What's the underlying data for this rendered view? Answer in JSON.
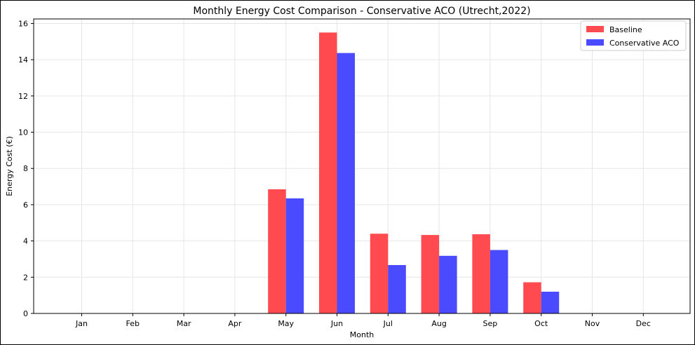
{
  "chart_data": {
    "type": "bar",
    "title": "Monthly Energy Cost Comparison - Conservative ACO (Utrecht,2022)",
    "xlabel": "Month",
    "ylabel": "Energy Cost (€)",
    "categories": [
      "Jan",
      "Feb",
      "Mar",
      "Apr",
      "May",
      "Jun",
      "Jul",
      "Aug",
      "Sep",
      "Oct",
      "Nov",
      "Dec"
    ],
    "series": [
      {
        "name": "Baseline",
        "color": "#ff4a4f",
        "values": [
          0,
          0,
          0,
          0,
          6.85,
          15.5,
          4.4,
          4.33,
          4.37,
          1.72,
          0,
          0
        ]
      },
      {
        "name": "Conservative ACO",
        "color": "#4a4aff",
        "values": [
          0,
          0,
          0,
          0,
          6.35,
          14.37,
          2.67,
          3.18,
          3.5,
          1.2,
          0,
          0
        ]
      }
    ],
    "ylim": [
      0,
      16.25
    ],
    "yticks": [
      0,
      2,
      4,
      6,
      8,
      10,
      12,
      14,
      16
    ],
    "grid": true,
    "legend_position": "top-right"
  }
}
